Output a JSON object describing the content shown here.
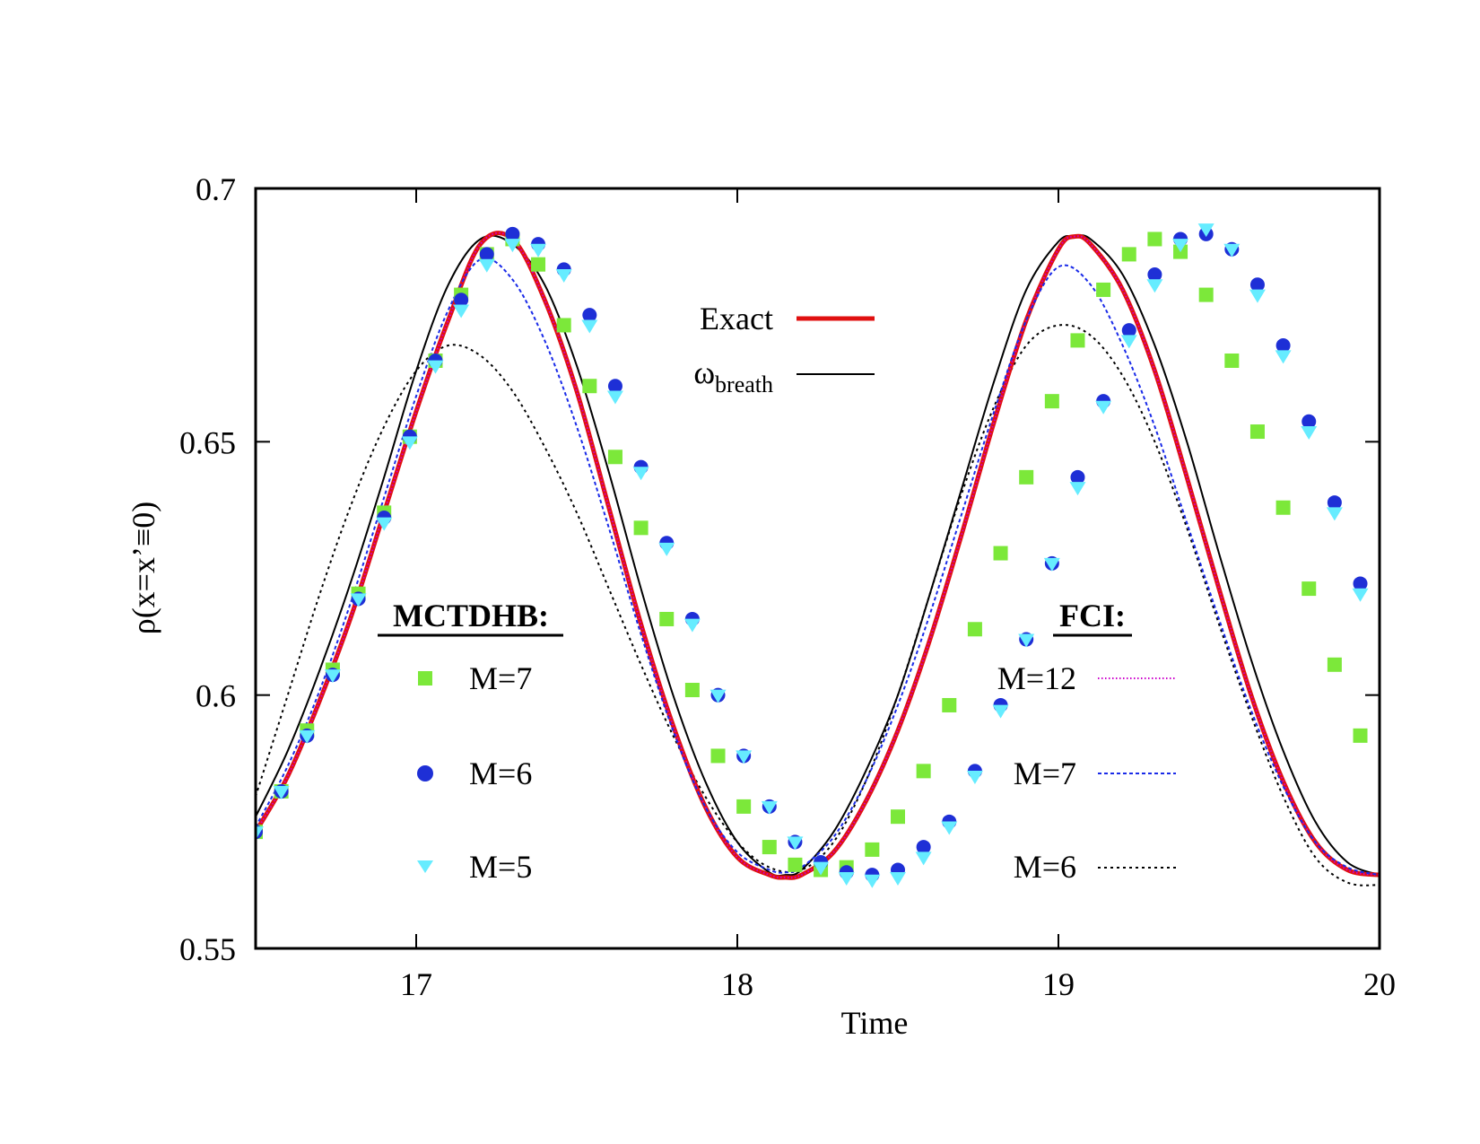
{
  "chart_data": {
    "type": "line",
    "xlabel": "Time",
    "ylabel": "ρ(x=x’≡0)",
    "xlim": [
      16.5,
      20
    ],
    "ylim": [
      0.55,
      0.7
    ],
    "xticks": [
      "17",
      "18",
      "19",
      "20"
    ],
    "yticks": [
      "0.55",
      "0.6",
      "0.65",
      "0.7"
    ],
    "grid": false,
    "legend_top": {
      "placement": "top-center",
      "entries": [
        {
          "label": "Exact",
          "series": "exact"
        },
        {
          "label_main": "ω",
          "label_sub": "breath",
          "series": "breath"
        }
      ]
    },
    "legend_mctdhb": {
      "placement": "center-left",
      "title": "MCTDHB:",
      "entries": [
        {
          "label": "M=7",
          "series": "mctdhb_m7"
        },
        {
          "label": "M=6",
          "series": "mctdhb_m6"
        },
        {
          "label": "M=5",
          "series": "mctdhb_m5"
        }
      ]
    },
    "legend_fci": {
      "placement": "center-right",
      "title": "FCI:",
      "entries": [
        {
          "label": "M=12",
          "series": "fci_m12"
        },
        {
          "label": "M=7",
          "series": "fci_m7"
        },
        {
          "label": "M=6",
          "series": "fci_m6"
        }
      ]
    },
    "series": [
      {
        "id": "exact",
        "style": "line",
        "color": "#e01010",
        "dash": "",
        "x": [
          16.5,
          16.6,
          16.7,
          16.8,
          16.9,
          17.0,
          17.1,
          17.2,
          17.3,
          17.4,
          17.5,
          17.6,
          17.7,
          17.8,
          17.9,
          18.0,
          18.1,
          18.15,
          18.2,
          18.3,
          18.4,
          18.5,
          18.6,
          18.7,
          18.8,
          18.9,
          19.0,
          19.05,
          19.1,
          19.2,
          19.3,
          19.4,
          19.5,
          19.6,
          19.7,
          19.8,
          19.9,
          20.0
        ],
        "y": [
          0.573,
          0.584,
          0.599,
          0.616,
          0.636,
          0.656,
          0.674,
          0.689,
          0.69,
          0.678,
          0.66,
          0.637,
          0.614,
          0.594,
          0.578,
          0.568,
          0.5645,
          0.564,
          0.5645,
          0.569,
          0.579,
          0.593,
          0.611,
          0.632,
          0.654,
          0.674,
          0.688,
          0.6905,
          0.689,
          0.68,
          0.664,
          0.643,
          0.621,
          0.6,
          0.583,
          0.571,
          0.5655,
          0.5645
        ]
      },
      {
        "id": "breath",
        "style": "line",
        "color": "#000000",
        "dash": "",
        "x": [
          16.5,
          16.6,
          16.7,
          16.8,
          16.9,
          17.0,
          17.1,
          17.2,
          17.3,
          17.4,
          17.5,
          17.6,
          17.7,
          17.8,
          17.9,
          18.0,
          18.1,
          18.15,
          18.2,
          18.3,
          18.4,
          18.5,
          18.6,
          18.7,
          18.8,
          18.9,
          19.0,
          19.05,
          19.1,
          19.2,
          19.3,
          19.4,
          19.5,
          19.6,
          19.7,
          19.8,
          19.9,
          20.0
        ],
        "y": [
          0.576,
          0.589,
          0.605,
          0.623,
          0.643,
          0.664,
          0.681,
          0.69,
          0.689,
          0.681,
          0.665,
          0.644,
          0.621,
          0.6,
          0.583,
          0.571,
          0.565,
          0.5645,
          0.5655,
          0.573,
          0.585,
          0.6,
          0.62,
          0.641,
          0.662,
          0.68,
          0.6895,
          0.6905,
          0.69,
          0.683,
          0.669,
          0.65,
          0.628,
          0.607,
          0.589,
          0.575,
          0.567,
          0.5645
        ]
      },
      {
        "id": "fci_m12",
        "style": "line",
        "color": "#cc00cc",
        "dash": "1.5,2.5",
        "x": [
          16.5,
          16.6,
          16.7,
          16.8,
          16.9,
          17.0,
          17.1,
          17.2,
          17.3,
          17.4,
          17.5,
          17.6,
          17.7,
          17.8,
          17.9,
          18.0,
          18.1,
          18.15,
          18.2,
          18.3,
          18.4,
          18.5,
          18.6,
          18.7,
          18.8,
          18.9,
          19.0,
          19.05,
          19.1,
          19.2,
          19.3,
          19.4,
          19.5,
          19.6,
          19.7,
          19.8,
          19.9,
          20.0
        ],
        "y": [
          0.573,
          0.584,
          0.599,
          0.616,
          0.636,
          0.656,
          0.674,
          0.689,
          0.69,
          0.678,
          0.66,
          0.637,
          0.614,
          0.594,
          0.578,
          0.568,
          0.5645,
          0.564,
          0.5645,
          0.569,
          0.579,
          0.593,
          0.611,
          0.632,
          0.654,
          0.674,
          0.688,
          0.6905,
          0.689,
          0.68,
          0.664,
          0.643,
          0.621,
          0.6,
          0.583,
          0.571,
          0.5655,
          0.5645
        ]
      },
      {
        "id": "fci_m7",
        "style": "line",
        "color": "#1a2be8",
        "dash": "4,3",
        "x": [
          16.5,
          16.6,
          16.7,
          16.8,
          16.9,
          17.0,
          17.1,
          17.2,
          17.3,
          17.4,
          17.5,
          17.6,
          17.7,
          17.8,
          17.9,
          18.0,
          18.1,
          18.15,
          18.2,
          18.3,
          18.4,
          18.5,
          18.6,
          18.7,
          18.8,
          18.9,
          19.0,
          19.1,
          19.2,
          19.3,
          19.4,
          19.5,
          19.6,
          19.7,
          19.8,
          19.9,
          20.0
        ],
        "y": [
          0.574,
          0.586,
          0.601,
          0.619,
          0.639,
          0.659,
          0.676,
          0.686,
          0.682,
          0.67,
          0.653,
          0.633,
          0.612,
          0.593,
          0.578,
          0.569,
          0.5655,
          0.565,
          0.566,
          0.572,
          0.583,
          0.598,
          0.616,
          0.636,
          0.656,
          0.674,
          0.6845,
          0.681,
          0.669,
          0.653,
          0.634,
          0.615,
          0.597,
          0.582,
          0.571,
          0.566,
          0.5645
        ]
      },
      {
        "id": "fci_m6",
        "style": "line",
        "color": "#000000",
        "dash": "3,4",
        "x": [
          16.5,
          16.6,
          16.7,
          16.8,
          16.9,
          17.0,
          17.1,
          17.2,
          17.3,
          17.4,
          17.5,
          17.6,
          17.7,
          17.8,
          17.9,
          18.0,
          18.1,
          18.2,
          18.3,
          18.4,
          18.5,
          18.6,
          18.7,
          18.8,
          18.9,
          19.0,
          19.1,
          19.2,
          19.3,
          19.4,
          19.5,
          19.6,
          19.7,
          19.8,
          19.9,
          20.0
        ],
        "y": [
          0.58,
          0.6,
          0.62,
          0.638,
          0.653,
          0.664,
          0.669,
          0.667,
          0.66,
          0.649,
          0.636,
          0.621,
          0.606,
          0.592,
          0.58,
          0.571,
          0.566,
          0.5655,
          0.571,
          0.583,
          0.6,
          0.62,
          0.64,
          0.657,
          0.669,
          0.673,
          0.671,
          0.663,
          0.65,
          0.633,
          0.614,
          0.596,
          0.58,
          0.568,
          0.563,
          0.5625
        ]
      },
      {
        "id": "mctdhb_m7",
        "style": "marker",
        "marker": "square",
        "color": "#7ce83a",
        "x": [
          16.5,
          16.58,
          16.66,
          16.74,
          16.82,
          16.9,
          16.98,
          17.06,
          17.14,
          17.22,
          17.3,
          17.38,
          17.46,
          17.54,
          17.62,
          17.7,
          17.78,
          17.86,
          17.94,
          18.02,
          18.1,
          18.18,
          18.26,
          18.34,
          18.42,
          18.5,
          18.58,
          18.66,
          18.74,
          18.82,
          18.9,
          18.98,
          19.06,
          19.14,
          19.22,
          19.3,
          19.38,
          19.46,
          19.54,
          19.62,
          19.7,
          19.78,
          19.86,
          19.94
        ],
        "y": [
          0.573,
          0.581,
          0.593,
          0.605,
          0.62,
          0.636,
          0.651,
          0.666,
          0.679,
          0.687,
          0.69,
          0.685,
          0.673,
          0.661,
          0.647,
          0.633,
          0.615,
          0.601,
          0.588,
          0.578,
          0.57,
          0.5665,
          0.5655,
          0.566,
          0.5695,
          0.576,
          0.585,
          0.598,
          0.613,
          0.628,
          0.643,
          0.658,
          0.67,
          0.68,
          0.687,
          0.69,
          0.6875,
          0.679,
          0.666,
          0.652,
          0.637,
          0.621,
          0.606,
          0.592
        ]
      },
      {
        "id": "mctdhb_m6",
        "style": "marker",
        "marker": "circle",
        "color": "#1e2fd6",
        "x": [
          16.5,
          16.58,
          16.66,
          16.74,
          16.82,
          16.9,
          16.98,
          17.06,
          17.14,
          17.22,
          17.3,
          17.38,
          17.46,
          17.54,
          17.62,
          17.7,
          17.78,
          17.86,
          17.94,
          18.02,
          18.1,
          18.18,
          18.26,
          18.34,
          18.42,
          18.5,
          18.58,
          18.66,
          18.74,
          18.82,
          18.9,
          18.98,
          19.06,
          19.14,
          19.22,
          19.3,
          19.38,
          19.46,
          19.54,
          19.62,
          19.7,
          19.78,
          19.86,
          19.94
        ],
        "y": [
          0.573,
          0.581,
          0.592,
          0.604,
          0.619,
          0.635,
          0.651,
          0.666,
          0.678,
          0.687,
          0.691,
          0.689,
          0.684,
          0.675,
          0.661,
          0.645,
          0.63,
          0.615,
          0.6,
          0.588,
          0.578,
          0.571,
          0.567,
          0.565,
          0.5645,
          0.5655,
          0.57,
          0.575,
          0.585,
          0.598,
          0.611,
          0.626,
          0.643,
          0.658,
          0.672,
          0.683,
          0.69,
          0.691,
          0.688,
          0.681,
          0.669,
          0.654,
          0.638,
          0.622
        ]
      },
      {
        "id": "mctdhb_m5",
        "style": "marker",
        "marker": "triangle-down",
        "color": "#66ecff",
        "x": [
          16.5,
          16.58,
          16.66,
          16.74,
          16.82,
          16.9,
          16.98,
          17.06,
          17.14,
          17.22,
          17.3,
          17.38,
          17.46,
          17.54,
          17.62,
          17.7,
          17.78,
          17.86,
          17.94,
          18.02,
          18.1,
          18.18,
          18.26,
          18.34,
          18.42,
          18.5,
          18.58,
          18.66,
          18.74,
          18.82,
          18.9,
          18.98,
          19.06,
          19.14,
          19.22,
          19.3,
          19.38,
          19.46,
          19.54,
          19.62,
          19.7,
          19.78,
          19.86,
          19.94
        ],
        "y": [
          0.573,
          0.581,
          0.592,
          0.604,
          0.619,
          0.634,
          0.65,
          0.665,
          0.676,
          0.685,
          0.689,
          0.688,
          0.683,
          0.673,
          0.659,
          0.644,
          0.629,
          0.614,
          0.6,
          0.588,
          0.578,
          0.571,
          0.566,
          0.564,
          0.5635,
          0.564,
          0.568,
          0.574,
          0.584,
          0.597,
          0.611,
          0.626,
          0.641,
          0.657,
          0.67,
          0.681,
          0.689,
          0.692,
          0.688,
          0.679,
          0.667,
          0.652,
          0.636,
          0.62
        ]
      }
    ]
  }
}
